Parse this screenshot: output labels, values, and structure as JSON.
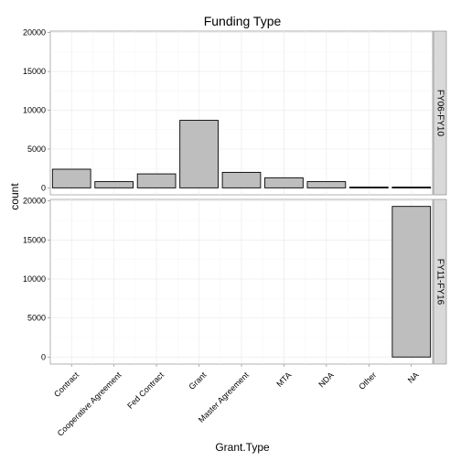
{
  "chart_data": {
    "type": "bar",
    "title": "Funding Type",
    "xlabel": "Grant.Type",
    "ylabel": "count",
    "categories": [
      "Contract",
      "Cooperative Agreement",
      "Fed Contract",
      "Grant",
      "Master Agreement",
      "MTA",
      "NDA",
      "Other",
      "NA"
    ],
    "facets": [
      {
        "label": "FY06-FY10",
        "values": [
          2400,
          800,
          1800,
          8700,
          2000,
          1300,
          800,
          100,
          100
        ]
      },
      {
        "label": "FY11-FY16",
        "values": [
          0,
          0,
          0,
          0,
          0,
          0,
          0,
          0,
          19300
        ]
      }
    ],
    "ylim": [
      0,
      20000
    ],
    "yticks": [
      "0",
      "5000",
      "10000",
      "15000",
      "20000"
    ],
    "yticks_values": [
      0,
      5000,
      10000,
      15000,
      20000
    ],
    "grid": true,
    "bar_fill": "#bebebe",
    "bar_stroke": "#000000",
    "panel_background": "#ffffff",
    "grid_color": "#ebebeb",
    "strip_background": "#d9d9d9"
  }
}
